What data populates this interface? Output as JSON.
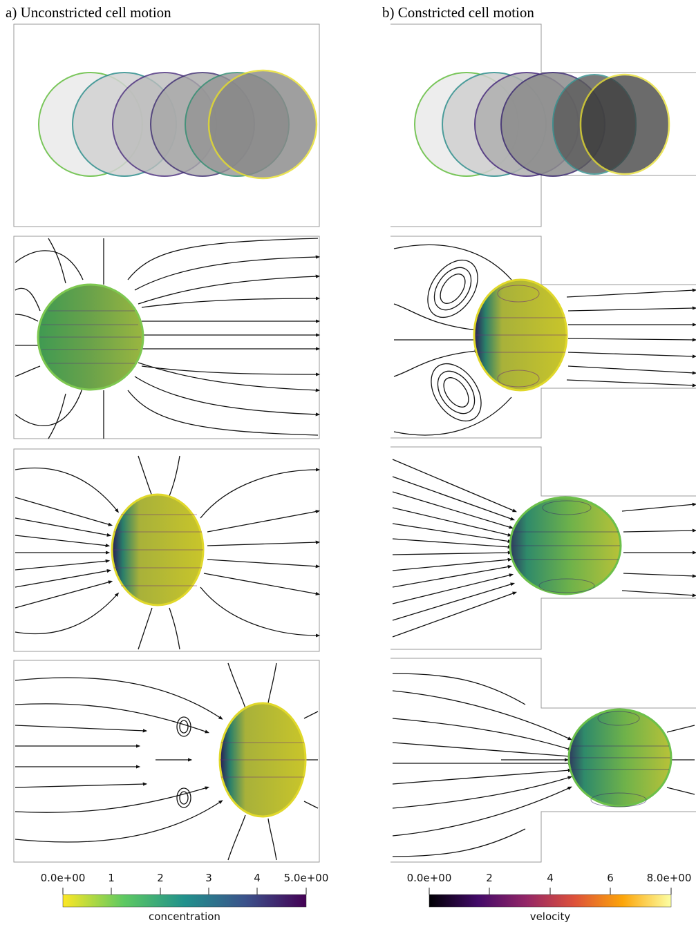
{
  "panels": {
    "left_title": "a) Unconstricted cell motion",
    "right_title": "b) Constricted cell motion"
  },
  "colorbars": {
    "concentration": {
      "title": "concentration",
      "ticks": [
        "0.0e+00",
        "1",
        "2",
        "3",
        "4",
        "5.0e+00"
      ],
      "colormap": "viridis (reversed)",
      "stops": [
        "#fde725",
        "#5ec962",
        "#21918c",
        "#3b528b",
        "#440154"
      ]
    },
    "velocity": {
      "title": "velocity",
      "ticks": [
        "0.0e+00",
        "2",
        "4",
        "6",
        "8.0e+00"
      ],
      "colormap": "inferno",
      "stops": [
        "#000004",
        "#420a68",
        "#932667",
        "#dd513a",
        "#fca50a",
        "#fcffa4"
      ]
    }
  }
}
